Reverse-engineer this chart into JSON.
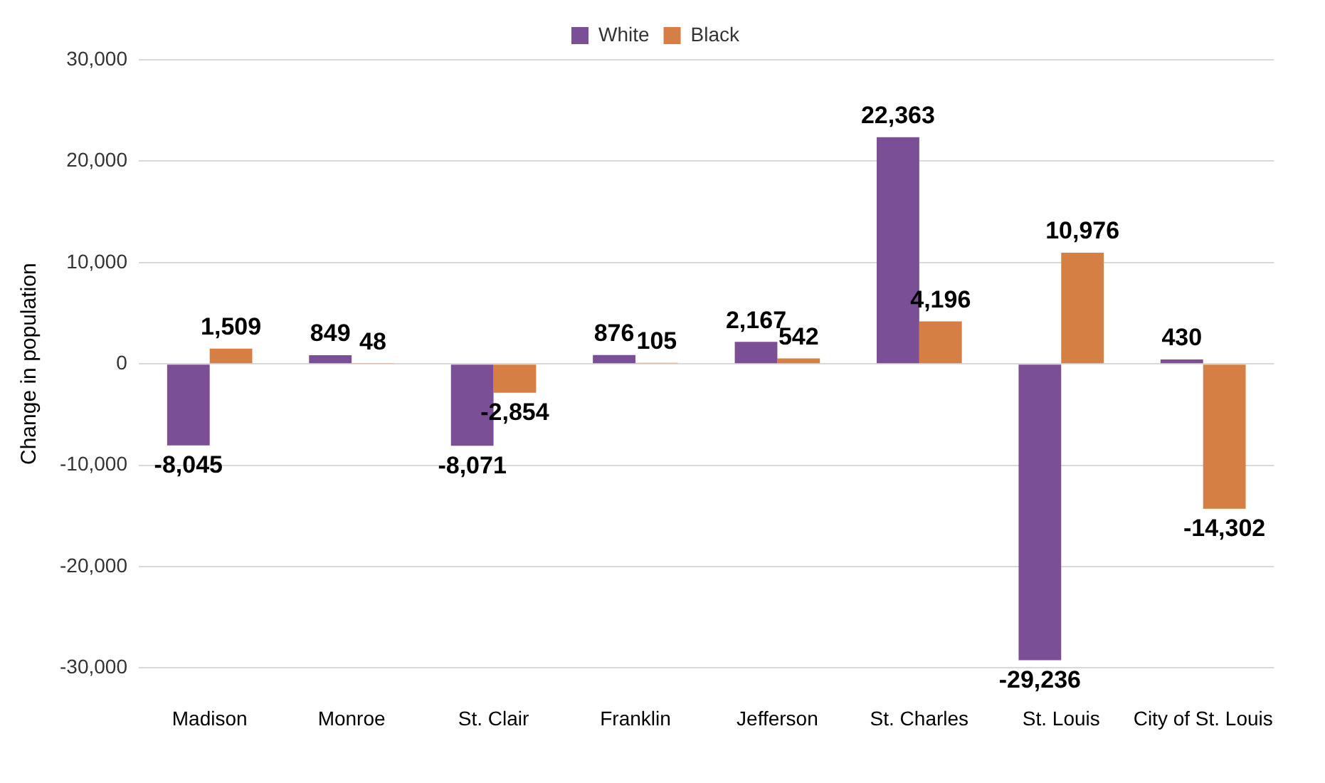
{
  "chart_data": {
    "type": "bar",
    "ylabel": "Change in population",
    "categories": [
      "Madison",
      "Monroe",
      "St. Clair",
      "Franklin",
      "Jefferson",
      "St. Charles",
      "St. Louis",
      "City of St. Louis"
    ],
    "series": [
      {
        "name": "White",
        "color": "#7b4f96",
        "values": [
          -8045,
          849,
          -8071,
          876,
          2167,
          22363,
          -29236,
          430
        ],
        "value_labels": [
          "-8,045",
          "849",
          "-8,071",
          "876",
          "2,167",
          "22,363",
          "-29,236",
          "430"
        ]
      },
      {
        "name": "Black",
        "color": "#d57f45",
        "values": [
          1509,
          48,
          -2854,
          105,
          542,
          4196,
          10976,
          -14302
        ],
        "value_labels": [
          "1,509",
          "48",
          "-2,854",
          "105",
          "542",
          "4,196",
          "10,976",
          "-14,302"
        ]
      }
    ],
    "ylim": [
      -30000,
      30000
    ],
    "yticks": [
      {
        "value": -30000,
        "label": "-30,000"
      },
      {
        "value": -20000,
        "label": "-20,000"
      },
      {
        "value": -10000,
        "label": "-10,000"
      },
      {
        "value": 0,
        "label": "0"
      },
      {
        "value": 10000,
        "label": "10,000"
      },
      {
        "value": 20000,
        "label": "20,000"
      },
      {
        "value": 30000,
        "label": "30,000"
      }
    ],
    "grid": "y",
    "legend": "top"
  }
}
